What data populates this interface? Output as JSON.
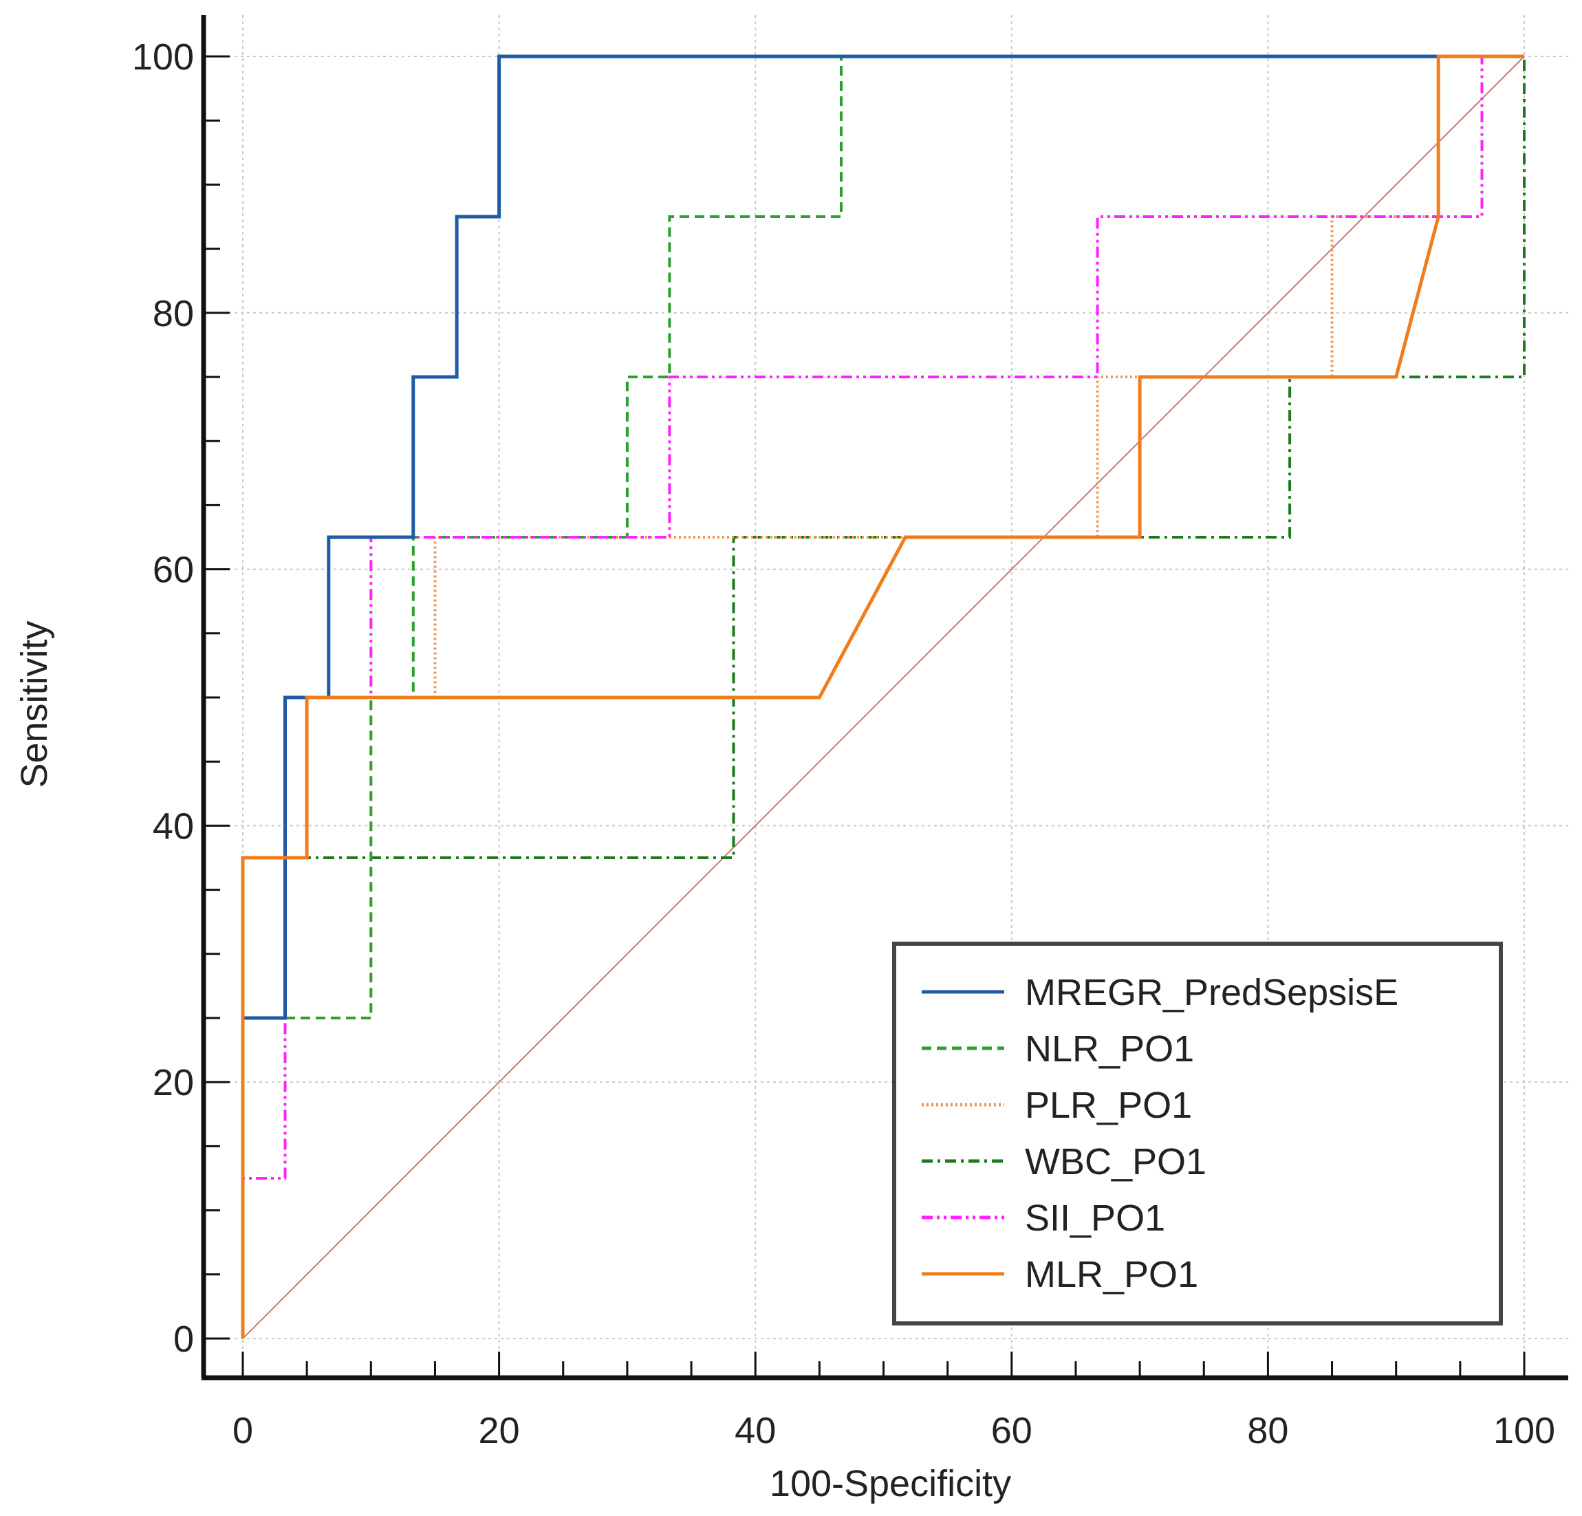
{
  "chart_data": {
    "type": "line",
    "subtype": "roc-step",
    "xlabel": "100-Specificity",
    "ylabel": "Sensitivity",
    "xlim": [
      0,
      100
    ],
    "ylim": [
      0,
      100
    ],
    "xticks": [
      0,
      20,
      40,
      60,
      80,
      100
    ],
    "yticks": [
      0,
      20,
      40,
      60,
      80,
      100
    ],
    "grid": true,
    "legend_position": "bottom-right",
    "reference_line": {
      "name": "diagonal",
      "color": "#c87a72",
      "points": [
        [
          0,
          0
        ],
        [
          100,
          100
        ]
      ]
    },
    "series": [
      {
        "name": "MREGR_PredSepsisE",
        "color": "#1f5aa6",
        "style": "solid",
        "points": [
          [
            0,
            0
          ],
          [
            0,
            25
          ],
          [
            3.3,
            25
          ],
          [
            3.3,
            50
          ],
          [
            6.7,
            50
          ],
          [
            6.7,
            62.5
          ],
          [
            13.3,
            62.5
          ],
          [
            13.3,
            75
          ],
          [
            16.7,
            75
          ],
          [
            16.7,
            87.5
          ],
          [
            20,
            87.5
          ],
          [
            20,
            100
          ],
          [
            100,
            100
          ]
        ]
      },
      {
        "name": "NLR_PO1",
        "color": "#2ca02c",
        "style": "dashed",
        "points": [
          [
            0,
            0
          ],
          [
            0,
            25
          ],
          [
            10,
            25
          ],
          [
            10,
            50
          ],
          [
            13.3,
            50
          ],
          [
            13.3,
            62.5
          ],
          [
            30,
            62.5
          ],
          [
            30,
            75
          ],
          [
            33.3,
            75
          ],
          [
            33.3,
            87.5
          ],
          [
            46.7,
            87.5
          ],
          [
            46.7,
            100
          ],
          [
            100,
            100
          ]
        ]
      },
      {
        "name": "PLR_PO1",
        "color": "#f29552",
        "style": "dotted",
        "points": [
          [
            0,
            0
          ],
          [
            0,
            37.5
          ],
          [
            3.3,
            37.5
          ],
          [
            3.3,
            50
          ],
          [
            15,
            50
          ],
          [
            15,
            62.5
          ],
          [
            66.7,
            62.5
          ],
          [
            66.7,
            75
          ],
          [
            85,
            75
          ],
          [
            85,
            87.5
          ],
          [
            93.3,
            87.5
          ],
          [
            93.3,
            100
          ],
          [
            100,
            100
          ]
        ]
      },
      {
        "name": "WBC_PO1",
        "color": "#1e7a1e",
        "style": "dashdot",
        "points": [
          [
            0,
            0
          ],
          [
            0,
            37.5
          ],
          [
            38.3,
            37.5
          ],
          [
            38.3,
            62.5
          ],
          [
            81.7,
            62.5
          ],
          [
            81.7,
            75
          ],
          [
            100,
            75
          ],
          [
            100,
            100
          ]
        ]
      },
      {
        "name": "SII_PO1",
        "color": "#ff22ff",
        "style": "dashdotdot",
        "points": [
          [
            0,
            0
          ],
          [
            0,
            12.5
          ],
          [
            3.3,
            12.5
          ],
          [
            3.3,
            50
          ],
          [
            10,
            50
          ],
          [
            10,
            62.5
          ],
          [
            33.3,
            62.5
          ],
          [
            33.3,
            75
          ],
          [
            66.7,
            75
          ],
          [
            66.7,
            87.5
          ],
          [
            96.7,
            87.5
          ],
          [
            96.7,
            100
          ],
          [
            100,
            100
          ]
        ]
      },
      {
        "name": "MLR_PO1",
        "color": "#f07d1c",
        "style": "solid",
        "points": [
          [
            0,
            0
          ],
          [
            0,
            37.5
          ],
          [
            5,
            37.5
          ],
          [
            5,
            50
          ],
          [
            45,
            50
          ],
          [
            51.7,
            62.5
          ],
          [
            70,
            62.5
          ],
          [
            70,
            75
          ],
          [
            90,
            75
          ],
          [
            93.3,
            87.5
          ],
          [
            93.3,
            100
          ],
          [
            100,
            100
          ]
        ]
      }
    ]
  }
}
